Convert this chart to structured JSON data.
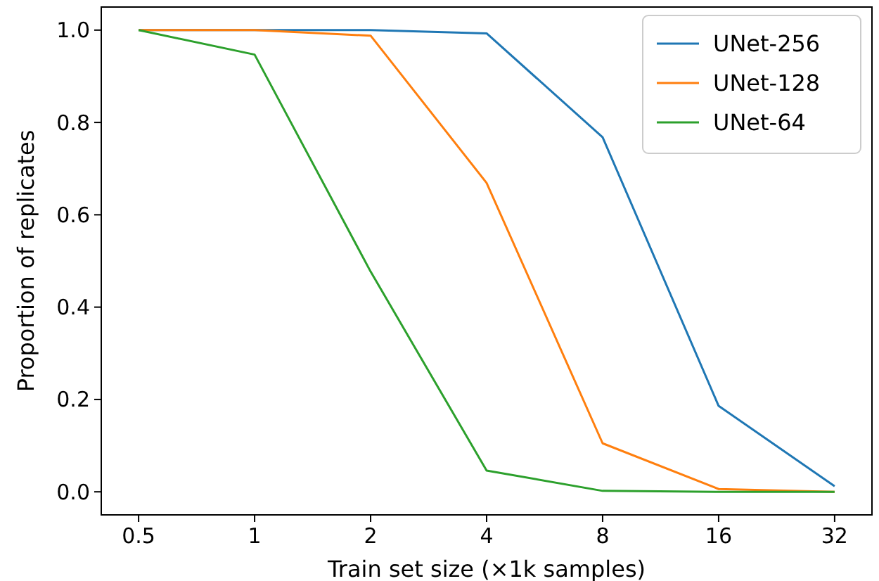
{
  "chart_data": {
    "type": "line",
    "xlabel": "Train set size (×1k samples)",
    "ylabel": "Proportion of replicates",
    "x": [
      0.5,
      1,
      2,
      4,
      8,
      16,
      32
    ],
    "series": [
      {
        "name": "UNet-256",
        "color": "#1f77b4",
        "values": [
          1.0,
          1.0,
          1.0,
          0.993,
          0.768,
          0.186,
          0.012
        ]
      },
      {
        "name": "UNet-128",
        "color": "#ff7f0e",
        "values": [
          1.0,
          1.0,
          0.988,
          0.669,
          0.105,
          0.006,
          0.0
        ]
      },
      {
        "name": "UNet-64",
        "color": "#2ca02c",
        "values": [
          1.0,
          0.947,
          0.477,
          0.046,
          0.002,
          0.0,
          0.0
        ]
      }
    ],
    "log": "x",
    "xlim": [
      0.4,
      40
    ],
    "xticks": [
      0.5,
      1,
      2,
      4,
      8,
      16,
      32
    ],
    "ylim": [
      -0.05,
      1.05
    ],
    "yticks": [
      {
        "value": 0,
        "label": "0.0"
      },
      {
        "value": 0.2,
        "label": "0.2"
      },
      {
        "value": 0.4,
        "label": "0.4"
      },
      {
        "value": 0.6,
        "label": "0.6"
      },
      {
        "value": 0.8,
        "label": "0.8"
      },
      {
        "value": 1,
        "label": "1.0"
      }
    ],
    "legend": "top right",
    "grid": false,
    "marker": "none",
    "line_style": "solid"
  }
}
